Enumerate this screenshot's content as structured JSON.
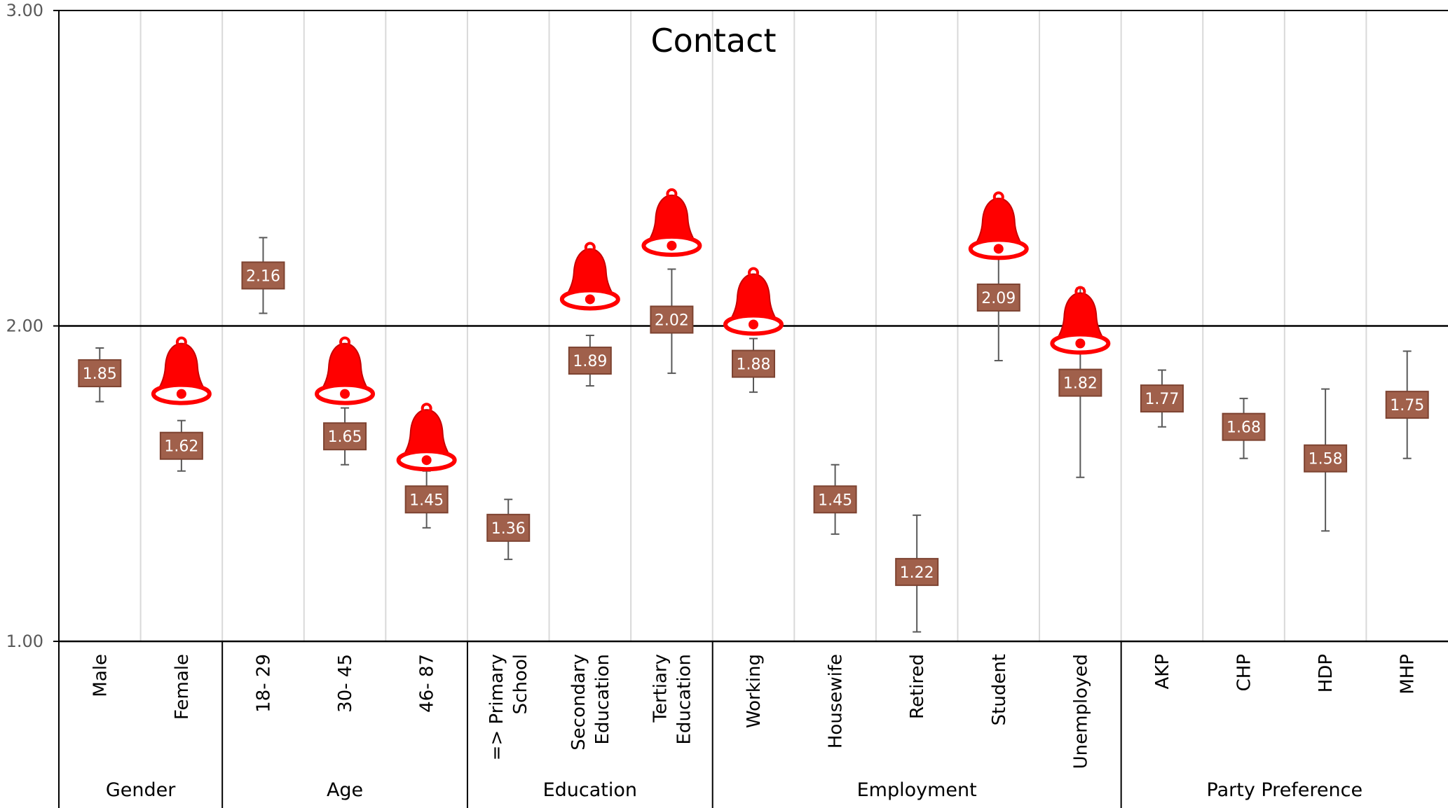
{
  "chart_data": {
    "type": "dot-errorbar",
    "title": "Contact",
    "ylim": [
      1.0,
      3.0
    ],
    "y_ticks": [
      "1.00",
      "2.00",
      "3.00"
    ],
    "reference_line": 2.0,
    "groups": [
      {
        "name": "Gender",
        "categories": [
          "Male",
          "Female"
        ]
      },
      {
        "name": "Age",
        "categories": [
          "18- 29",
          "30- 45",
          "46- 87"
        ]
      },
      {
        "name": "Education",
        "categories": [
          "=> Primary School",
          "Secondary Education",
          "Tertiary Education"
        ]
      },
      {
        "name": "Employment",
        "categories": [
          "Working",
          "Housewife",
          "Retired",
          "Student",
          "Unemployed"
        ]
      },
      {
        "name": "Party Preference",
        "categories": [
          "AKP",
          "CHP",
          "HDP",
          "MHP"
        ]
      }
    ],
    "category_label_lines": [
      [
        "Male"
      ],
      [
        "Female"
      ],
      [
        "18- 29"
      ],
      [
        "30- 45"
      ],
      [
        "46- 87"
      ],
      [
        "=> Primary",
        "School"
      ],
      [
        "Secondary",
        "Education"
      ],
      [
        "Tertiary",
        "Education"
      ],
      [
        "Working"
      ],
      [
        "Housewife"
      ],
      [
        "Retired"
      ],
      [
        "Student"
      ],
      [
        "Unemployed"
      ],
      [
        "AKP"
      ],
      [
        "CHP"
      ],
      [
        "HDP"
      ],
      [
        "MHP"
      ]
    ],
    "values": [
      1.85,
      1.62,
      2.16,
      1.65,
      1.45,
      1.36,
      1.89,
      2.02,
      1.88,
      1.45,
      1.22,
      2.09,
      1.82,
      1.77,
      1.68,
      1.58,
      1.75
    ],
    "value_labels": [
      "1.85",
      "1.62",
      "2.16",
      "1.65",
      "1.45",
      "1.36",
      "1.89",
      "2.02",
      "1.88",
      "1.45",
      "1.22",
      "2.09",
      "1.82",
      "1.77",
      "1.68",
      "1.58",
      "1.75"
    ],
    "error_low": [
      1.76,
      1.54,
      2.04,
      1.56,
      1.36,
      1.26,
      1.81,
      1.85,
      1.79,
      1.34,
      1.03,
      1.89,
      1.52,
      1.68,
      1.58,
      1.35,
      1.58
    ],
    "error_high": [
      1.93,
      1.7,
      2.28,
      1.74,
      1.54,
      1.45,
      1.97,
      2.18,
      1.96,
      1.56,
      1.4,
      2.28,
      2.12,
      1.86,
      1.77,
      1.8,
      1.92
    ],
    "bell_markers": [
      {
        "category": "Female",
        "y": 1.82
      },
      {
        "category": "30- 45",
        "y": 1.82
      },
      {
        "category": "46- 87",
        "y": 1.61
      },
      {
        "category": "Secondary Education",
        "y": 2.12
      },
      {
        "category": "Tertiary Education",
        "y": 2.29
      },
      {
        "category": "Working",
        "y": 2.04
      },
      {
        "category": "Student",
        "y": 2.28
      },
      {
        "category": "Unemployed",
        "y": 1.98
      }
    ],
    "colors": {
      "label_box_fill": "#a0604b",
      "label_box_stroke": "#7d4331",
      "label_text": "#ffffff",
      "bell_fill": "#ff0000",
      "bell_outline": "#c80000",
      "grid": "#d9d9d9",
      "axis": "#000000",
      "error_bar": "#595959"
    }
  }
}
